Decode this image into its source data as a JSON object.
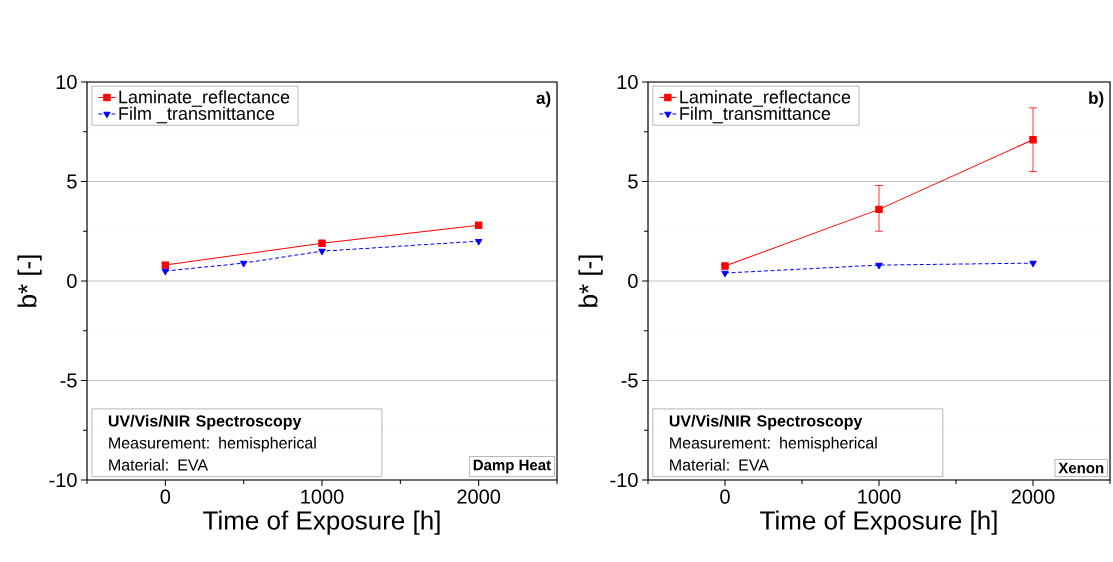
{
  "chart_data": [
    {
      "type": "line",
      "xlabel": "Time of Exposure [h]",
      "ylabel": "b* [-]",
      "series": [
        {
          "name": "Laminate_reflectance",
          "color": "#ff0000",
          "marker": "square",
          "line_style": "solid",
          "x": [
            0,
            1000,
            2000
          ],
          "values": [
            0.8,
            1.9,
            2.8
          ]
        },
        {
          "name": "Film _transmittance",
          "color": "#0000ff",
          "marker": "triangle",
          "line_style": "dashed",
          "x": [
            0,
            500,
            1000,
            2000
          ],
          "values": [
            0.5,
            0.9,
            1.5,
            2.0
          ]
        }
      ],
      "xlim": [
        -500,
        2500
      ],
      "xticks": [
        {
          "value": -500,
          "label": null
        },
        0,
        {
          "value": 500,
          "label": null
        },
        1000,
        {
          "value": 1500,
          "label": null
        },
        2000,
        {
          "value": 2500,
          "label": null
        }
      ],
      "ylim": [
        -10,
        10
      ],
      "yticks": [
        -10,
        {
          "value": -7.5,
          "label": null
        },
        -5,
        {
          "value": -2.5,
          "label": null
        },
        0,
        {
          "value": 2.5,
          "label": null
        },
        5,
        {
          "value": 7.5,
          "label": null
        },
        10
      ],
      "grid": "y",
      "legend": "top left",
      "annotations": [
        "a)",
        "UV/Vis/NIR Spectroscopy",
        "Measurement: hemispherical",
        "Material: EVA",
        "Damp Heat"
      ]
    },
    {
      "type": "line",
      "xlabel": "Time of Exposure [h]",
      "ylabel": "b* [-]",
      "x": [
        0,
        1000,
        2000
      ],
      "series": [
        {
          "name": "Laminate_reflectance",
          "color": "#ff0000",
          "marker": "square",
          "line_style": "solid",
          "values": [
            0.75,
            3.6,
            7.1
          ],
          "errors": [
            null,
            [
              2.5,
              4.8
            ],
            [
              5.5,
              8.7
            ]
          ]
        },
        {
          "name": "Film_transmittance",
          "color": "#0000ff",
          "marker": "triangle",
          "line_style": "dashed",
          "values": [
            0.4,
            0.8,
            0.9
          ]
        }
      ],
      "xlim": [
        -500,
        2500
      ],
      "xticks": [
        {
          "value": -500,
          "label": null
        },
        0,
        {
          "value": 500,
          "label": null
        },
        1000,
        {
          "value": 1500,
          "label": null
        },
        2000,
        {
          "value": 2500,
          "label": null
        }
      ],
      "ylim": [
        -10,
        10
      ],
      "yticks": [
        -10,
        {
          "value": -7.5,
          "label": null
        },
        -5,
        {
          "value": -2.5,
          "label": null
        },
        0,
        {
          "value": 2.5,
          "label": null
        },
        5,
        {
          "value": 7.5,
          "label": null
        },
        10
      ],
      "grid": "y",
      "legend": "top left",
      "annotations": [
        "b)",
        "UV/Vis/NIR Spectroscopy",
        "Measurement: hemispherical",
        "Material: EVA",
        "Xenon"
      ]
    }
  ]
}
